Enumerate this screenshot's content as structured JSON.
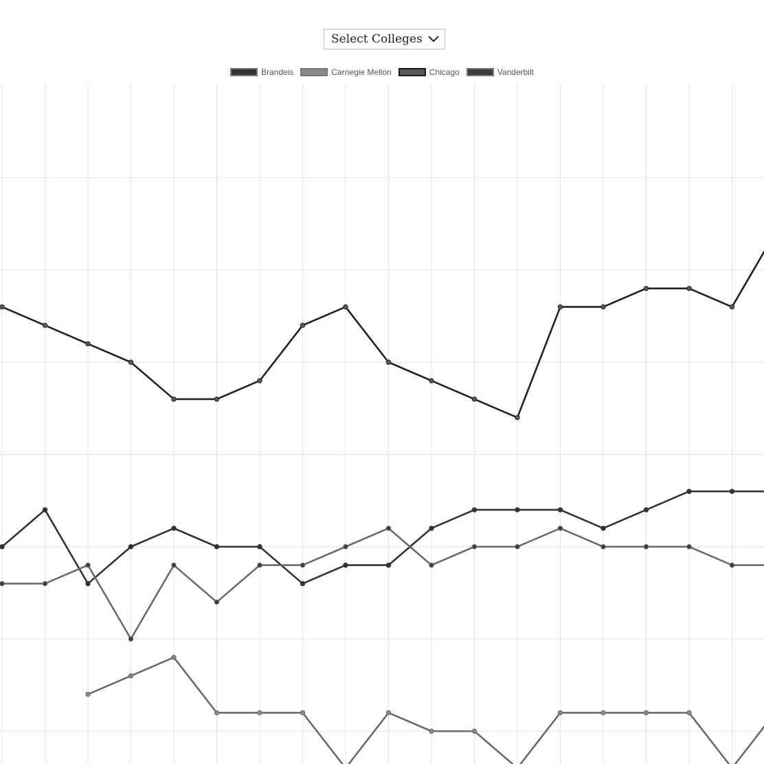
{
  "controls": {
    "select_label": "Select Colleges",
    "select_icon": "chevron-down-icon"
  },
  "chart_data": {
    "type": "line",
    "title": "",
    "xlabel": "",
    "ylabel": "",
    "x": [
      0,
      1,
      2,
      3,
      4,
      5,
      6,
      7,
      8,
      9,
      10,
      11,
      12,
      13,
      14,
      15,
      16,
      17,
      18
    ],
    "xlim": [
      0,
      18
    ],
    "ylim": [
      0,
      37
    ],
    "grid": true,
    "legend_position": "top-center",
    "series": [
      {
        "name": "Brandeis",
        "color": "#333333",
        "fill": "#333333",
        "values": [
          15,
          17,
          13,
          15,
          16,
          15,
          15,
          13,
          14,
          14,
          16,
          17,
          17,
          17,
          16,
          17,
          18,
          18,
          18
        ]
      },
      {
        "name": "Carnegie Mellon",
        "color": "#6b6b6b",
        "fill": "#8a8a8a",
        "values": [
          null,
          null,
          7,
          8,
          9,
          6,
          6,
          6,
          3,
          6,
          5,
          5,
          3,
          6,
          6,
          6,
          6,
          3,
          6
        ]
      },
      {
        "name": "Chicago",
        "color": "#222222",
        "fill": "#5a5a5a",
        "values": [
          28,
          27,
          26,
          25,
          23,
          23,
          24,
          27,
          28,
          25,
          24,
          23,
          22,
          28,
          28,
          29,
          29,
          28,
          32
        ]
      },
      {
        "name": "Vanderbilt",
        "color": "#6b6b6b",
        "fill": "#3c3c3c",
        "values": [
          13,
          13,
          14,
          10,
          14,
          12,
          14,
          14,
          15,
          16,
          14,
          15,
          15,
          16,
          15,
          15,
          15,
          14,
          14
        ]
      }
    ]
  }
}
